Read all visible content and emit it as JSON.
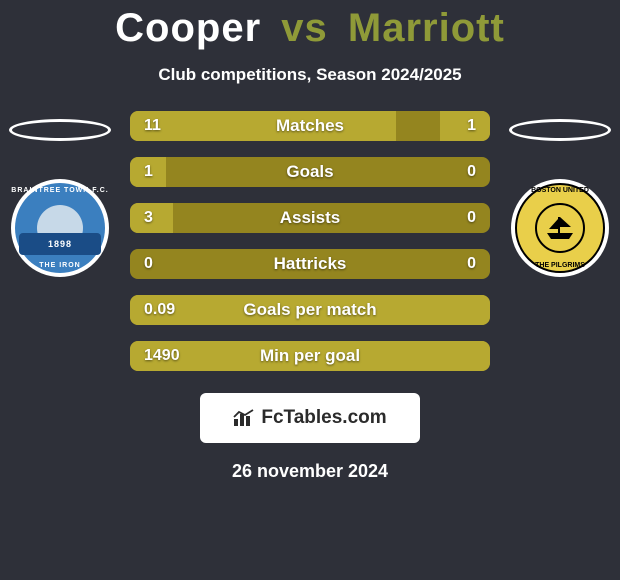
{
  "background_color": "#2e3039",
  "title": {
    "left": "Cooper",
    "vs": "vs",
    "right": "Marriott",
    "left_color": "#ffffff",
    "right_color": "#8f9a38",
    "vs_color": "#8f9a38",
    "fontsize": 40
  },
  "subtitle": "Club competitions, Season 2024/2025",
  "players": {
    "left_badge": {
      "top_text": "BRAINTREE TOWN F.C.",
      "band_text": "1898",
      "bottom_text": "THE IRON"
    },
    "right_badge": {
      "top_text": "BOSTON UNITED",
      "bottom_text": "THE PILGRIMS"
    }
  },
  "bars": {
    "bg_color": "#94851f",
    "left_fill_color": "#b7a931",
    "right_fill_color": "#b7a931",
    "label_color": "#ffffff",
    "value_color": "#ffffff",
    "border_radius": 8,
    "height": 30,
    "rows": [
      {
        "label": "Matches",
        "left": "11",
        "right": "1",
        "left_pct": 74,
        "right_pct": 14
      },
      {
        "label": "Goals",
        "left": "1",
        "right": "0",
        "left_pct": 10,
        "right_pct": 0
      },
      {
        "label": "Assists",
        "left": "3",
        "right": "0",
        "left_pct": 12,
        "right_pct": 0
      },
      {
        "label": "Hattricks",
        "left": "0",
        "right": "0",
        "left_pct": 0,
        "right_pct": 0
      },
      {
        "label": "Goals per match",
        "left": "0.09",
        "right": "",
        "left_pct": 100,
        "right_pct": 0
      },
      {
        "label": "Min per goal",
        "left": "1490",
        "right": "",
        "left_pct": 100,
        "right_pct": 0
      }
    ]
  },
  "footer": {
    "brand": "FcTables.com",
    "date": "26 november 2024"
  }
}
